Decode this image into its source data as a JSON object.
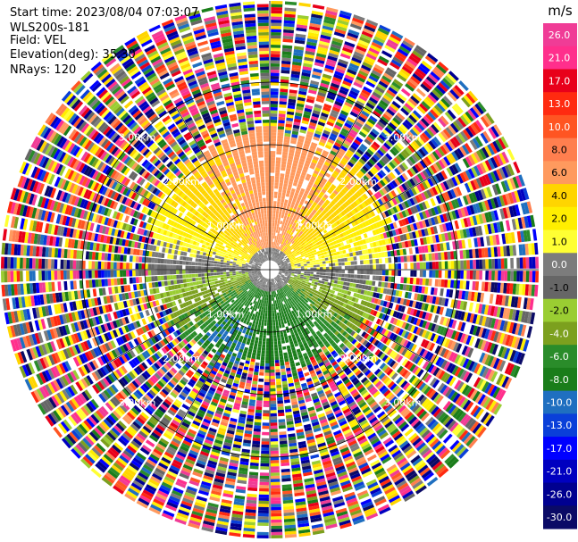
{
  "header": {
    "start_time": "Start time: 2023/08/04 07:03:07",
    "instrument": "WLS200s-181",
    "field": "Field: VEL",
    "elevation": "Elevation(deg): 35.30",
    "nrays": "NRays: 120"
  },
  "chart_data": {
    "type": "heatmap",
    "projection": "polar-ppi",
    "field": "VEL",
    "units": "m/s",
    "n_rays": 120,
    "elevation_deg": 35.3,
    "range_rings_km": [
      1.0,
      2.0,
      3.0
    ],
    "range_ring_labels": [
      "1.00km",
      "2.00km",
      "3.00km"
    ],
    "max_range_km": 4.3,
    "colorbar": {
      "units": "m/s",
      "ticks": [
        "26.0",
        "21.0",
        "17.0",
        "13.0",
        "10.0",
        "8.0",
        "6.0",
        "4.0",
        "2.0",
        "1.0",
        "0.0",
        "-1.0",
        "-2.0",
        "-4.0",
        "-6.0",
        "-8.0",
        "-10.0",
        "-13.0",
        "-17.0",
        "-21.0",
        "-26.0",
        "-30.0"
      ],
      "bins": [
        {
          "lo": 26,
          "hi": 30,
          "color": "#f03c96"
        },
        {
          "lo": 21,
          "hi": 26,
          "color": "#ff2f8c"
        },
        {
          "lo": 17,
          "hi": 21,
          "color": "#e8001a"
        },
        {
          "lo": 13,
          "hi": 17,
          "color": "#ff2a10"
        },
        {
          "lo": 10,
          "hi": 13,
          "color": "#ff5522"
        },
        {
          "lo": 8,
          "hi": 10,
          "color": "#ff7f4f"
        },
        {
          "lo": 6,
          "hi": 8,
          "color": "#ff9a5e"
        },
        {
          "lo": 4,
          "hi": 6,
          "color": "#ffd500"
        },
        {
          "lo": 2,
          "hi": 4,
          "color": "#ffee00"
        },
        {
          "lo": 1,
          "hi": 2,
          "color": "#ffff33"
        },
        {
          "lo": 0,
          "hi": 1,
          "color": "#7c7c7c"
        },
        {
          "lo": -1,
          "hi": 0,
          "color": "#666666"
        },
        {
          "lo": -2,
          "hi": -1,
          "color": "#9acd32"
        },
        {
          "lo": -4,
          "hi": -2,
          "color": "#7ca01e"
        },
        {
          "lo": -6,
          "hi": -4,
          "color": "#2a8c2a"
        },
        {
          "lo": -8,
          "hi": -6,
          "color": "#1a7d1a"
        },
        {
          "lo": -10,
          "hi": -8,
          "color": "#1f6fc0"
        },
        {
          "lo": -13,
          "hi": -10,
          "color": "#0a3fd9"
        },
        {
          "lo": -17,
          "hi": -13,
          "color": "#0000ff"
        },
        {
          "lo": -21,
          "hi": -17,
          "color": "#0000c0"
        },
        {
          "lo": -26,
          "hi": -21,
          "color": "#000090"
        },
        {
          "lo": -30,
          "hi": -26,
          "color": "#0a0a66"
        }
      ]
    }
  }
}
